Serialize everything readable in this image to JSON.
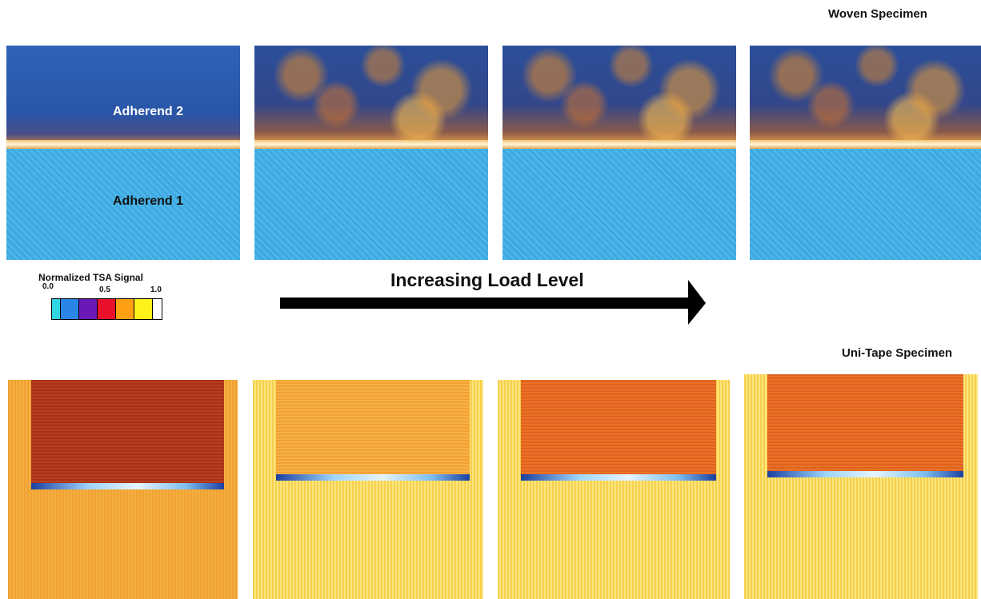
{
  "top_label": "Woven Specimen",
  "bottom_label": "Uni-Tape Specimen",
  "annotations": {
    "adherend_2": "Adherend 2",
    "adherend_1": "Adherend 1"
  },
  "colorbar": {
    "title": "Normalized TSA Signal",
    "ticks": [
      "0.0",
      "0.5",
      "1.0"
    ]
  },
  "arrow_label": "Increasing Load Level"
}
